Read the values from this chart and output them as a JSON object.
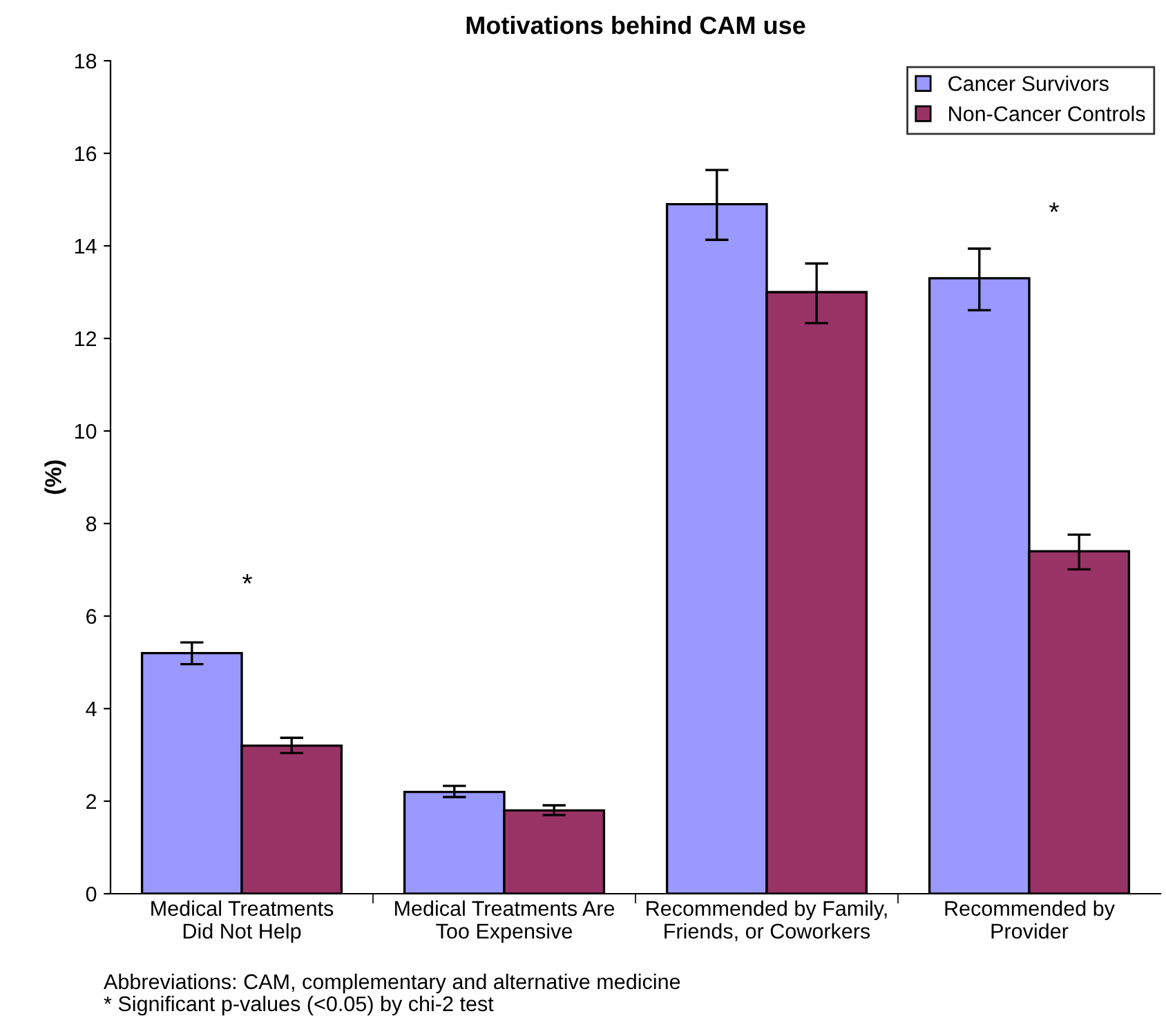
{
  "chart_data": {
    "type": "bar",
    "title": "Motivations behind CAM use",
    "ylabel": "(%)",
    "categories": [
      "Medical Treatments\nDid Not Help",
      "Medical Treatments Are\nToo Expensive",
      "Recommended by Family,\nFriends, or Coworkers",
      "Recommended by\nProvider"
    ],
    "series": [
      {
        "name": "Cancer Survivors",
        "color": "#9999ff",
        "values": [
          5.2,
          2.2,
          14.9,
          13.3
        ],
        "errors": [
          [
            4.96,
            5.43
          ],
          [
            2.09,
            2.33
          ],
          [
            14.13,
            15.64
          ],
          [
            12.61,
            13.94
          ]
        ]
      },
      {
        "name": "Non-Cancer Controls",
        "color": "#993366",
        "values": [
          3.2,
          1.8,
          13.0,
          7.4
        ],
        "errors": [
          [
            3.04,
            3.37
          ],
          [
            1.7,
            1.91
          ],
          [
            12.33,
            13.62
          ],
          [
            7.01,
            7.76
          ]
        ]
      }
    ],
    "ylim": [
      0,
      18
    ],
    "yticks": [
      0,
      2,
      4,
      6,
      8,
      10,
      12,
      14,
      16,
      18
    ],
    "grid": false,
    "legend": "top right",
    "annotations": [
      "*",
      "*",
      "Abbreviations: CAM, complementary and alternative medicine",
      "* Significant p-values (<0.05) by chi-2 test"
    ]
  }
}
